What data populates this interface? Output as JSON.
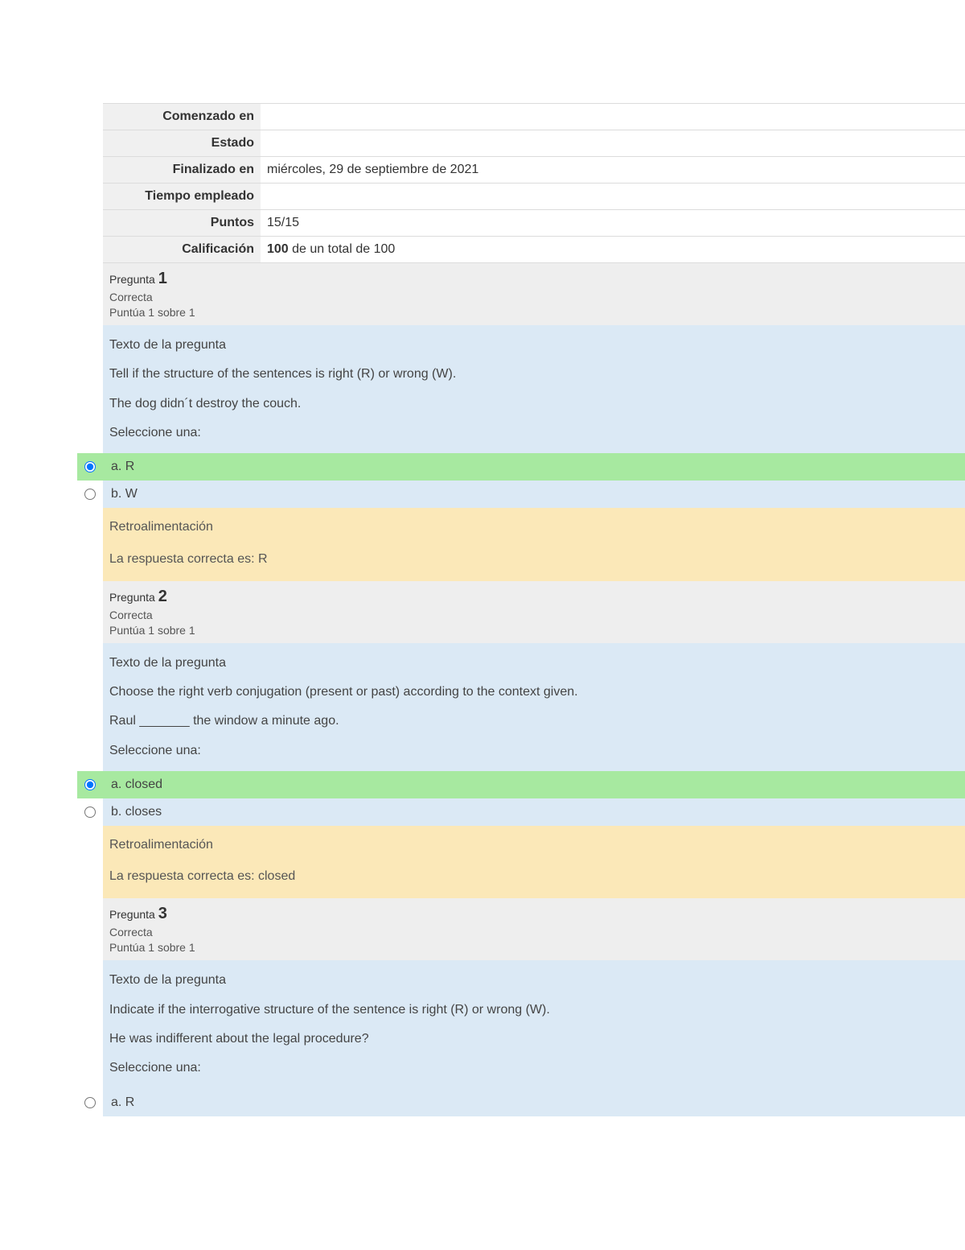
{
  "summary": {
    "rows": [
      {
        "label": "Comenzado en",
        "value": ""
      },
      {
        "label": "Estado",
        "value": ""
      },
      {
        "label": "Finalizado en",
        "value": "miércoles, 29 de septiembre de 2021"
      },
      {
        "label": "Tiempo empleado",
        "value": ""
      },
      {
        "label": "Puntos",
        "value": "15/15"
      },
      {
        "label": "Calificación",
        "value_strong": "100",
        "value_rest": " de un total de 100"
      }
    ]
  },
  "labels": {
    "pregunta": "Pregunta",
    "texto": "Texto de la pregunta",
    "seleccione": "Seleccione una:",
    "retro": "Retroalimentación",
    "respuesta_prefix": "La respuesta correcta es: "
  },
  "questions": [
    {
      "number": "1",
      "status": "Correcta",
      "score": "Puntúa 1 sobre 1",
      "prompt1": "Tell if the structure of the sentences is right (R) or wrong (W).",
      "prompt2": "The dog didn´t destroy the couch.",
      "options": [
        {
          "label": "a. R",
          "selected": true,
          "correct": true
        },
        {
          "label": "b. W",
          "selected": false,
          "correct": false
        }
      ],
      "answer": "R"
    },
    {
      "number": "2",
      "status": "Correcta",
      "score": "Puntúa 1 sobre 1",
      "prompt1": "Choose the right verb conjugation (present or past) according to the context given.",
      "prompt2": "Raul _______ the window a minute ago.",
      "options": [
        {
          "label": "a. closed",
          "selected": true,
          "correct": true
        },
        {
          "label": "b. closes",
          "selected": false,
          "correct": false
        }
      ],
      "answer": "closed"
    },
    {
      "number": "3",
      "status": "Correcta",
      "score": "Puntúa 1 sobre 1",
      "prompt1": "Indicate if the interrogative structure of the sentence is right (R) or wrong (W).",
      "prompt2": "He was indifferent about the legal procedure?",
      "options": [
        {
          "label": "a. R",
          "selected": false,
          "correct": false
        }
      ]
    }
  ],
  "colors": {
    "summary_label_bg": "#f0f0f0",
    "qheader_bg": "#eeeeee",
    "qbody_bg": "#dbe9f5",
    "correct_bg": "#a7e9a0",
    "feedback_bg": "#fbe8b8",
    "border": "#dcdcdc",
    "text": "#333333"
  }
}
